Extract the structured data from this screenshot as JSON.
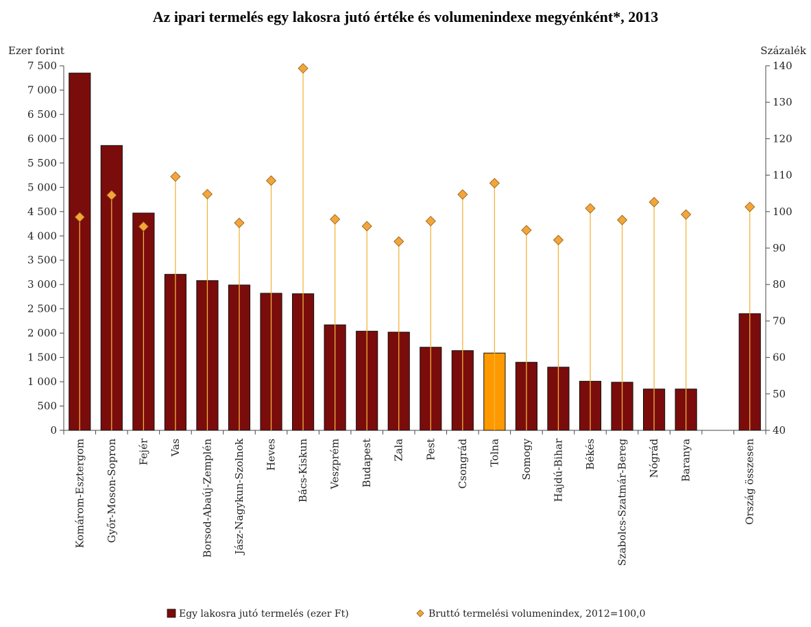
{
  "chart_data": {
    "type": "bar",
    "title": "Az ipari termelés egy lakosra jutó értéke és volumenindexe megyénként*, 2013",
    "ylabel_left": "Ezer forint",
    "ylabel_right": "Százalék",
    "ylim_left": [
      0,
      7500
    ],
    "ylim_right": [
      40,
      140
    ],
    "yticks_left": [
      "0",
      "500",
      "1 000",
      "1 500",
      "2 000",
      "2 500",
      "3 000",
      "3 500",
      "4 000",
      "4 500",
      "5 000",
      "5 500",
      "6 000",
      "6 500",
      "7 000",
      "7 500"
    ],
    "yticks_right": [
      "40",
      "50",
      "60",
      "70",
      "80",
      "90",
      "100",
      "110",
      "120",
      "130",
      "140"
    ],
    "categories": [
      "Komárom-Esztergom",
      "Győr-Moson-Sopron",
      "Fejér",
      "Vas",
      "Borsod-Abaúj-Zemplén",
      "Jász-Nagykun-Szolnok",
      "Heves",
      "Bács-Kiskun",
      "Veszprém",
      "Budapest",
      "Zala",
      "Pest",
      "Csongrád",
      "Tolna",
      "Somogy",
      "Hajdú-Bihar",
      "Békés",
      "Szabolcs-Szatmár-Bereg",
      "Nógrád",
      "Baranya",
      "",
      "Ország összesen"
    ],
    "series": [
      {
        "name": "Egy lakosra jutó termelés (ezer Ft)",
        "axis": "left",
        "color": "#7B0C0C",
        "highlight_color": "#FF9900",
        "highlight_index": 13,
        "values": [
          7350,
          5860,
          4470,
          3210,
          3080,
          2990,
          2820,
          2810,
          2170,
          2040,
          2020,
          1710,
          1640,
          1590,
          1400,
          1300,
          1010,
          990,
          850,
          850,
          null,
          2400
        ]
      },
      {
        "name": "Bruttó termelési volumenindex, 2012=100,0",
        "axis": "right",
        "color": "#F4A53A",
        "values": [
          98.5,
          104.5,
          95.9,
          109.6,
          104.8,
          96.9,
          108.5,
          139.3,
          97.9,
          96.0,
          91.8,
          97.4,
          104.7,
          107.8,
          94.9,
          92.2,
          100.9,
          97.7,
          102.6,
          99.2,
          null,
          101.3
        ]
      }
    ],
    "legend_position": "bottom-center",
    "grid": false
  }
}
